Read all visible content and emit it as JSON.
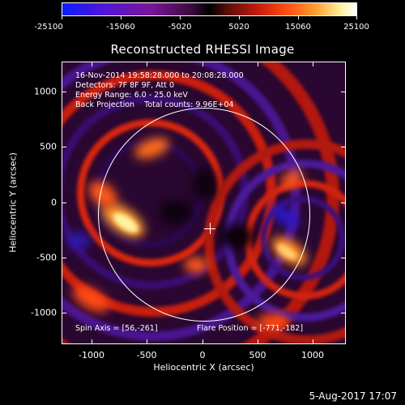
{
  "colorbar": {
    "ticks": [
      "-25100",
      "-15060",
      "-5020",
      "5020",
      "15060",
      "25100"
    ]
  },
  "title": "Reconstructed RHESSI Image",
  "info": {
    "line1": "16-Nov-2014 19:58:28.000 to 20:08:28.000",
    "line2": "Detectors: 7F 8F 9F, Att 0",
    "line3": "Energy Range: 6.0 - 25.0 keV",
    "line4": "Back Projection    Total counts: 9.96E+04",
    "spin_axis": "Spin Axis = [56,-261]",
    "flare_position": "Flare Position = [-771,-182]"
  },
  "chart_data": {
    "type": "heatmap",
    "title": "Reconstructed RHESSI Image",
    "xlabel": "Heliocentric X (arcsec)",
    "ylabel": "Heliocentric Y (arcsec)",
    "xlim": [
      -1290,
      1300
    ],
    "ylim": [
      -1290,
      1270
    ],
    "x_ticks": [
      "-1000",
      "-500",
      "0",
      "500",
      "1000"
    ],
    "y_ticks": [
      "1000",
      "500",
      "0",
      "-500",
      "-1000"
    ],
    "colorbar_range": [
      -25100,
      25100
    ],
    "colormap": [
      "#0b1cff",
      "#7a149c",
      "#000000",
      "#c11a0c",
      "#ff9c2c",
      "#ffffff"
    ]
  },
  "footer": {
    "date": "5-Aug-2017 17:07"
  }
}
